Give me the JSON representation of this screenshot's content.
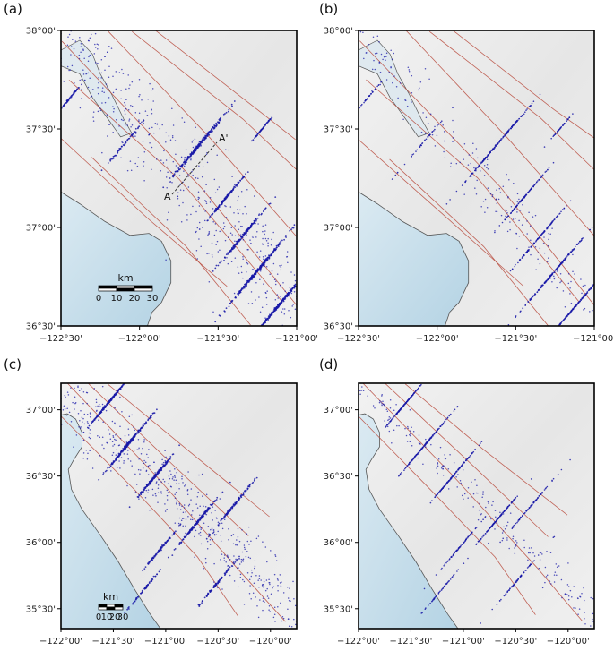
{
  "panels": [
    {
      "id": "a",
      "label": "(a)",
      "lon_range": [
        -122.5,
        -121.0
      ],
      "lat_range": [
        36.5,
        38.0
      ],
      "x_ticks": [
        {
          "value": -122.5,
          "label": "−122°30'"
        },
        {
          "value": -122.0,
          "label": "−122°00'"
        },
        {
          "value": -121.5,
          "label": "−121°30'"
        },
        {
          "value": -121.0,
          "label": "−121°00'"
        }
      ],
      "y_ticks": [
        {
          "value": 38.0,
          "label": "38°00'"
        },
        {
          "value": 37.5,
          "label": "37°30'"
        },
        {
          "value": 37.0,
          "label": "37°00'"
        },
        {
          "value": 36.5,
          "label": "36°30'"
        }
      ],
      "scalebar": {
        "title": "km",
        "labels": [
          "0",
          "10",
          "20",
          "30"
        ]
      },
      "cross_section": {
        "start_label": "A",
        "end_label": "A'"
      },
      "seismicity": "diffuse"
    },
    {
      "id": "b",
      "label": "(b)",
      "lon_range": [
        -122.5,
        -121.0
      ],
      "lat_range": [
        36.5,
        38.0
      ],
      "x_ticks": [
        {
          "value": -122.5,
          "label": "−122°30'"
        },
        {
          "value": -122.0,
          "label": "−122°00'"
        },
        {
          "value": -121.5,
          "label": "−121°30'"
        },
        {
          "value": -121.0,
          "label": "−121°00'"
        }
      ],
      "y_ticks": [
        {
          "value": 38.0,
          "label": "38°00'"
        },
        {
          "value": 37.5,
          "label": "37°30'"
        },
        {
          "value": 37.0,
          "label": "37°00'"
        },
        {
          "value": 36.5,
          "label": "36°30'"
        }
      ],
      "seismicity": "relocated"
    },
    {
      "id": "c",
      "label": "(c)",
      "lon_range": [
        -122.0,
        -119.75
      ],
      "lat_range": [
        35.35,
        37.2
      ],
      "x_ticks": [
        {
          "value": -122.0,
          "label": "−122°00'"
        },
        {
          "value": -121.5,
          "label": "−121°30'"
        },
        {
          "value": -121.0,
          "label": "−121°00'"
        },
        {
          "value": -120.5,
          "label": "−120°30'"
        },
        {
          "value": -120.0,
          "label": "−120°00'"
        }
      ],
      "y_ticks": [
        {
          "value": 37.0,
          "label": "37°00'"
        },
        {
          "value": 36.5,
          "label": "36°30'"
        },
        {
          "value": 36.0,
          "label": "36°00'"
        },
        {
          "value": 35.5,
          "label": "35°30'"
        }
      ],
      "scalebar": {
        "title": "km",
        "labels": [
          "0",
          "10",
          "20",
          "30"
        ]
      },
      "seismicity": "diffuse"
    },
    {
      "id": "d",
      "label": "(d)",
      "lon_range": [
        -122.0,
        -119.75
      ],
      "lat_range": [
        35.35,
        37.2
      ],
      "x_ticks": [
        {
          "value": -122.0,
          "label": "−122°00'"
        },
        {
          "value": -121.5,
          "label": "−121°30'"
        },
        {
          "value": -121.0,
          "label": "−121°00'"
        },
        {
          "value": -120.5,
          "label": "−120°30'"
        },
        {
          "value": -120.0,
          "label": "−120°00'"
        }
      ],
      "y_ticks": [
        {
          "value": 37.0,
          "label": "37°00'"
        },
        {
          "value": 36.5,
          "label": "36°30'"
        },
        {
          "value": 36.0,
          "label": "36°00'"
        },
        {
          "value": 35.5,
          "label": "35°30'"
        }
      ],
      "seismicity": "relocated"
    }
  ],
  "colors": {
    "land": "#eeeeee",
    "ocean": "#c9e0ec",
    "ocean_deep": "#b4d3e4",
    "coast": "#555555",
    "faults": "#b84a3c",
    "events": "#1a1aa8",
    "frame": "#000000"
  },
  "icons": {
    "faults": "fault-trace-lines",
    "events": "earthquake-dot"
  }
}
